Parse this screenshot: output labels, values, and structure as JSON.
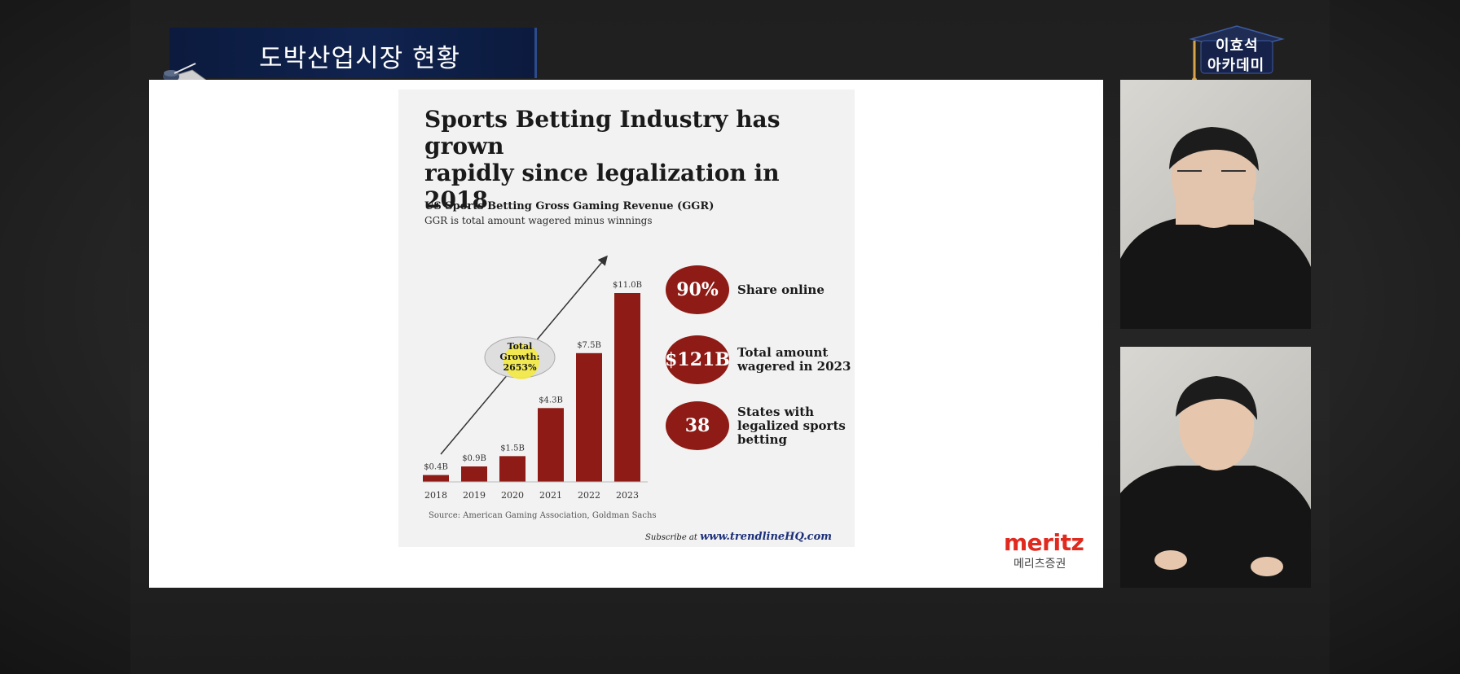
{
  "banner": {
    "title": "도박산업시장 현황"
  },
  "academy": {
    "line1": "이효석",
    "line2": "아카데미"
  },
  "infographic": {
    "title_line1": "Sports Betting Industry has grown",
    "title_line2": "rapidly since legalization in 2018",
    "subtitle": "US Sports Betting Gross Gaming Revenue (GGR)",
    "subtitle2": "GGR is total amount wagered minus winnings",
    "growth_label_line1": "Total",
    "growth_label_line2": "Growth:",
    "growth_label_line3": "2653%",
    "source": "Source: American Gaming Association, Goldman Sachs",
    "subscribe_prefix": "Subscribe at",
    "subscribe_url": "www.trendlineHQ.com",
    "stats": [
      {
        "value": "90%",
        "label": "Share online"
      },
      {
        "value": "$121B",
        "label": "Total amount wagered in 2023"
      },
      {
        "value": "38",
        "label": "States with legalized sports betting"
      }
    ]
  },
  "brand": {
    "en": "meritz",
    "ko": "메리츠증권"
  },
  "colors": {
    "bar": "#8e1b15",
    "accent_red": "#e02a1f",
    "banner_navy": "#0b1a3d"
  },
  "chart_data": {
    "type": "bar",
    "title": "US Sports Betting Gross Gaming Revenue (GGR)",
    "subtitle": "GGR is total amount wagered minus winnings",
    "categories": [
      "2018",
      "2019",
      "2020",
      "2021",
      "2022",
      "2023"
    ],
    "values": [
      0.4,
      0.9,
      1.5,
      4.3,
      7.5,
      11.0
    ],
    "value_labels": [
      "$0.4B",
      "$0.9B",
      "$1.5B",
      "$4.3B",
      "$7.5B",
      "$11.0B"
    ],
    "unit": "$B",
    "ylim": [
      0,
      11.0
    ],
    "grid": false,
    "annotations": [
      "Total Growth: 2653%"
    ]
  }
}
